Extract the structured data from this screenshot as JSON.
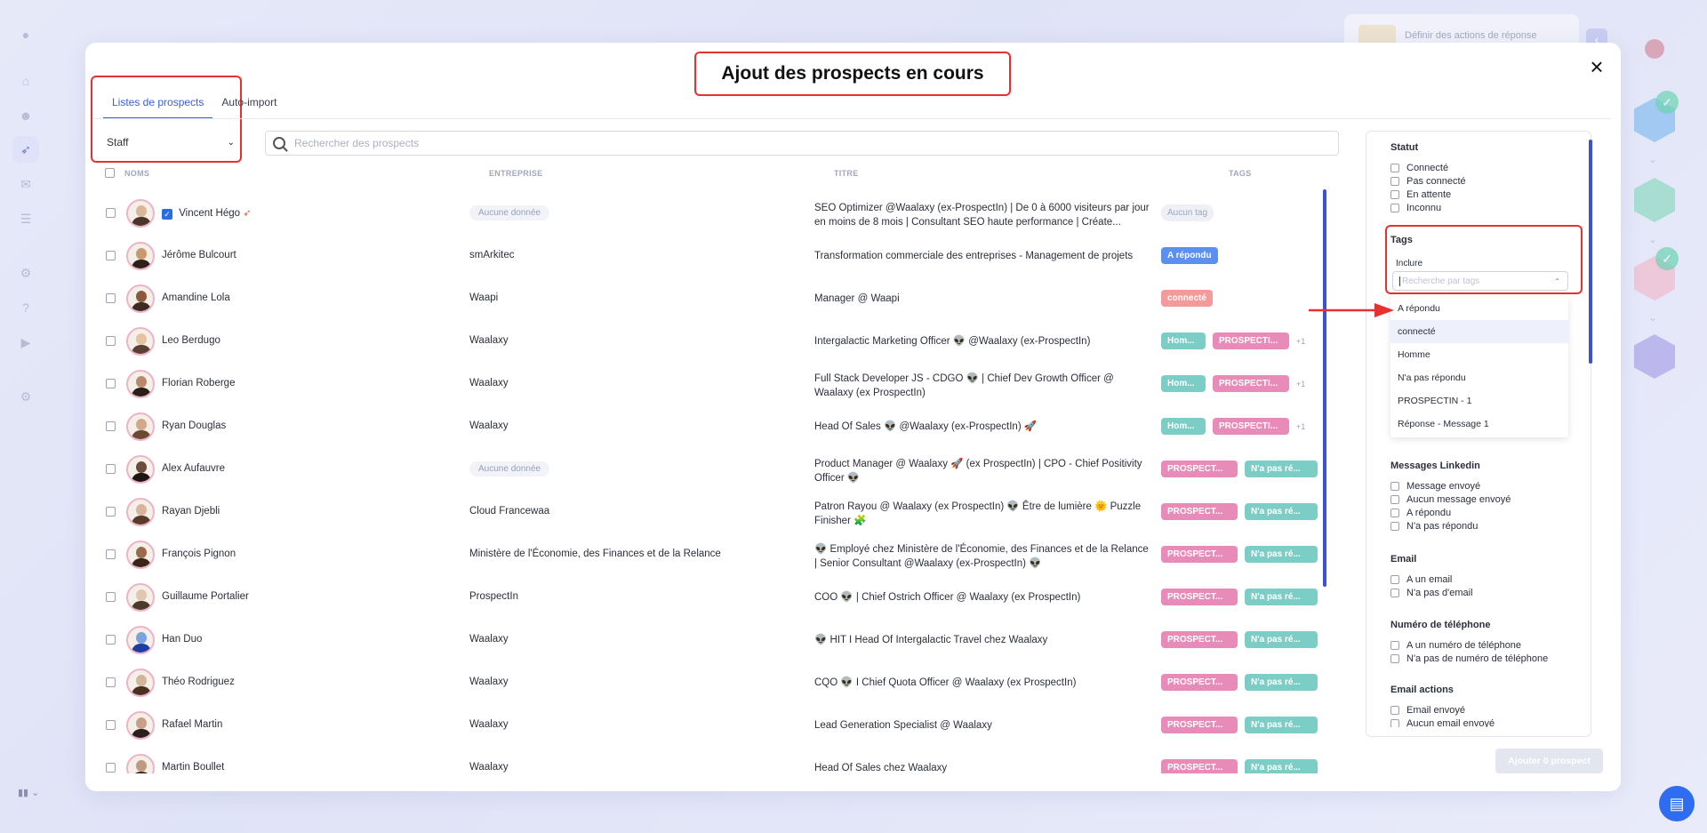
{
  "modal": {
    "title": "Ajout des prospects en cours",
    "tabs": [
      "Listes de prospects",
      "Auto-import"
    ],
    "list_selected": "Staff",
    "search_placeholder": "Rechercher des prospects",
    "add_button": "Ajouter 0 prospect"
  },
  "table": {
    "headers": {
      "names": "NOMS",
      "company": "ENTREPRISE",
      "title": "TITRE",
      "tags": "TAGS"
    },
    "rows": [
      {
        "name": "Vincent Hégo",
        "verified": true,
        "company": "Aucune donnée",
        "company_empty": true,
        "title": "SEO Optimizer @Waalaxy (ex-ProspectIn) | De 0 à 6000 visiteurs par jour en moins de 8 mois | Consultant SEO haute performance | Créate...",
        "tags": [
          {
            "label": "Aucun tag",
            "style": "gray"
          }
        ],
        "more": ""
      },
      {
        "name": "Jérôme Bulcourt",
        "company": "smArkitec",
        "title": "Transformation commerciale des entreprises - Management de projets",
        "tags": [
          {
            "label": "A répondu",
            "style": "blue"
          }
        ],
        "more": ""
      },
      {
        "name": "Amandine Lola",
        "company": "Waapi",
        "title": "Manager @ Waapi",
        "tags": [
          {
            "label": "connecté",
            "style": "salmon"
          }
        ],
        "more": ""
      },
      {
        "name": "Leo Berdugo",
        "company": "Waalaxy",
        "title": "Intergalactic Marketing Officer 👽 @Waalaxy (ex-ProspectIn)",
        "tags": [
          {
            "label": "Hom...",
            "style": "teal"
          },
          {
            "label": "PROSPECTI...",
            "style": "pink"
          }
        ],
        "more": "+1"
      },
      {
        "name": "Florian Roberge",
        "company": "Waalaxy",
        "title": "Full Stack Developer JS - CDGO 👽 | Chief Dev Growth Officer @ Waalaxy (ex ProspectIn)",
        "tags": [
          {
            "label": "Hom...",
            "style": "teal"
          },
          {
            "label": "PROSPECTI...",
            "style": "pink"
          }
        ],
        "more": "+1"
      },
      {
        "name": "Ryan Douglas",
        "company": "Waalaxy",
        "title": "Head Of Sales 👽 @Waalaxy (ex-ProspectIn) 🚀",
        "tags": [
          {
            "label": "Hom...",
            "style": "teal"
          },
          {
            "label": "PROSPECTI...",
            "style": "pink"
          }
        ],
        "more": "+1"
      },
      {
        "name": "Alex Aufauvre",
        "company": "Aucune donnée",
        "company_empty": true,
        "title": "Product Manager @ Waalaxy 🚀 (ex ProspectIn) | CPO - Chief Positivity Officer 👽",
        "tags": [
          {
            "label": "PROSPECT...",
            "style": "pink2"
          },
          {
            "label": "N'a pas ré...",
            "style": "teal2"
          }
        ],
        "more": ""
      },
      {
        "name": "Rayan Djebli",
        "company": "Cloud Francewaa",
        "title": "Patron Rayou @ Waalaxy (ex ProspectIn) 👽 Être de lumière 🌞 Puzzle Finisher 🧩",
        "tags": [
          {
            "label": "PROSPECT...",
            "style": "pink2"
          },
          {
            "label": "N'a pas ré...",
            "style": "teal2"
          }
        ],
        "more": ""
      },
      {
        "name": "François Pignon",
        "company": "Ministère de l'Économie, des Finances et de la Relance",
        "title": "👽 Employé chez Ministère de l'Économie, des Finances et de la Relance  |  Senior Consultant @Waalaxy (ex-ProspectIn) 👽",
        "tags": [
          {
            "label": "PROSPECT...",
            "style": "pink2"
          },
          {
            "label": "N'a pas ré...",
            "style": "teal2"
          }
        ],
        "more": ""
      },
      {
        "name": "Guillaume Portalier",
        "company": "ProspectIn",
        "title": "COO 👽 | Chief Ostrich Officer @ Waalaxy (ex ProspectIn)",
        "tags": [
          {
            "label": "PROSPECT...",
            "style": "pink2"
          },
          {
            "label": "N'a pas ré...",
            "style": "teal2"
          }
        ],
        "more": ""
      },
      {
        "name": "Han Duo",
        "company": "Waalaxy",
        "title": "👽 HIT I Head Of Intergalactic Travel chez Waalaxy",
        "tags": [
          {
            "label": "PROSPECT...",
            "style": "pink2"
          },
          {
            "label": "N'a pas ré...",
            "style": "teal2"
          }
        ],
        "more": ""
      },
      {
        "name": "Théo Rodriguez",
        "company": "Waalaxy",
        "title": "CQO 👽 I Chief Quota Officer @ Waalaxy (ex ProspectIn)",
        "tags": [
          {
            "label": "PROSPECT...",
            "style": "pink2"
          },
          {
            "label": "N'a pas ré...",
            "style": "teal2"
          }
        ],
        "more": ""
      },
      {
        "name": "Rafael Martin",
        "company": "Waalaxy",
        "title": "Lead Generation Specialist @ Waalaxy",
        "tags": [
          {
            "label": "PROSPECT...",
            "style": "pink2"
          },
          {
            "label": "N'a pas ré...",
            "style": "teal2"
          }
        ],
        "more": ""
      },
      {
        "name": "Martin Boullet",
        "company": "Waalaxy",
        "title": "Head Of Sales chez Waalaxy",
        "tags": [
          {
            "label": "PROSPECT...",
            "style": "pink2"
          },
          {
            "label": "N'a pas ré...",
            "style": "teal2"
          }
        ],
        "more": ""
      }
    ]
  },
  "filters": {
    "statut": {
      "title": "Statut",
      "options": [
        "Connecté",
        "Pas connecté",
        "En attente",
        "Inconnu"
      ]
    },
    "tags": {
      "title": "Tags",
      "include_label": "Inclure",
      "placeholder": "Recherche par tags",
      "options": [
        "A répondu",
        "connecté",
        "Homme",
        "N'a pas répondu",
        "PROSPECTIN - 1",
        "Réponse - Message 1"
      ],
      "highlighted": "connecté"
    },
    "messages": {
      "title": "Messages Linkedin",
      "options": [
        "Message envoyé",
        "Aucun message envoyé",
        "A répondu",
        "N'a pas répondu"
      ]
    },
    "email": {
      "title": "Email",
      "options": [
        "A un email",
        "N'a pas d'email"
      ]
    },
    "phone": {
      "title": "Numéro de téléphone",
      "options": [
        "A un numéro de téléphone",
        "N'a pas de numéro de téléphone"
      ]
    },
    "email_actions": {
      "title": "Email actions",
      "options": [
        "Email envoyé",
        "Aucun email envoyé"
      ]
    }
  },
  "background": {
    "card_text": "Définir des actions de réponse"
  },
  "colors": {
    "accent": "#3b61d6",
    "annotation_red": "#e5312f",
    "scroll": "#3b52d6"
  }
}
